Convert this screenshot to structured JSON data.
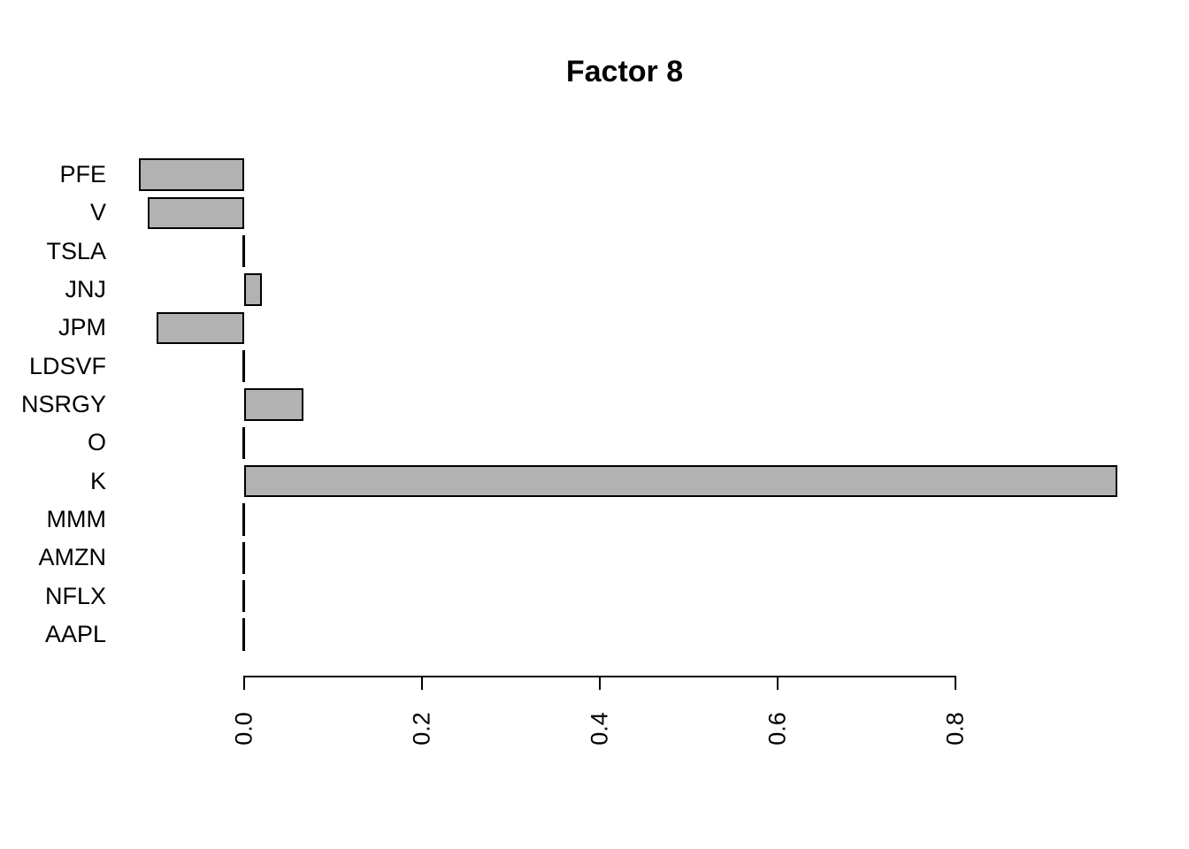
{
  "title": "Factor 8",
  "colors": {
    "background": "#ffffff",
    "bar_fill": "#b2b2b2",
    "bar_border": "#000000",
    "axis": "#000000",
    "text": "#000000"
  },
  "chart_data": {
    "type": "bar",
    "orientation": "horizontal",
    "title": "Factor 8",
    "categories": [
      "PFE",
      "V",
      "TSLA",
      "JNJ",
      "JPM",
      "LDSVF",
      "NSRGY",
      "O",
      "K",
      "MMM",
      "AMZN",
      "NFLX",
      "AAPL"
    ],
    "values": [
      -0.118,
      -0.108,
      0,
      0.02,
      -0.098,
      0,
      0.067,
      0,
      0.982,
      0,
      0,
      0,
      0
    ],
    "xlabel": "",
    "ylabel": "",
    "xticks": [
      0.0,
      0.2,
      0.4,
      0.6,
      0.8
    ],
    "xtick_labels": [
      "0.0",
      "0.2",
      "0.4",
      "0.6",
      "0.8"
    ],
    "xtick_label_rotation_deg": -90,
    "xlim": [
      -0.13,
      0.99
    ],
    "grid": false,
    "legend": null
  }
}
